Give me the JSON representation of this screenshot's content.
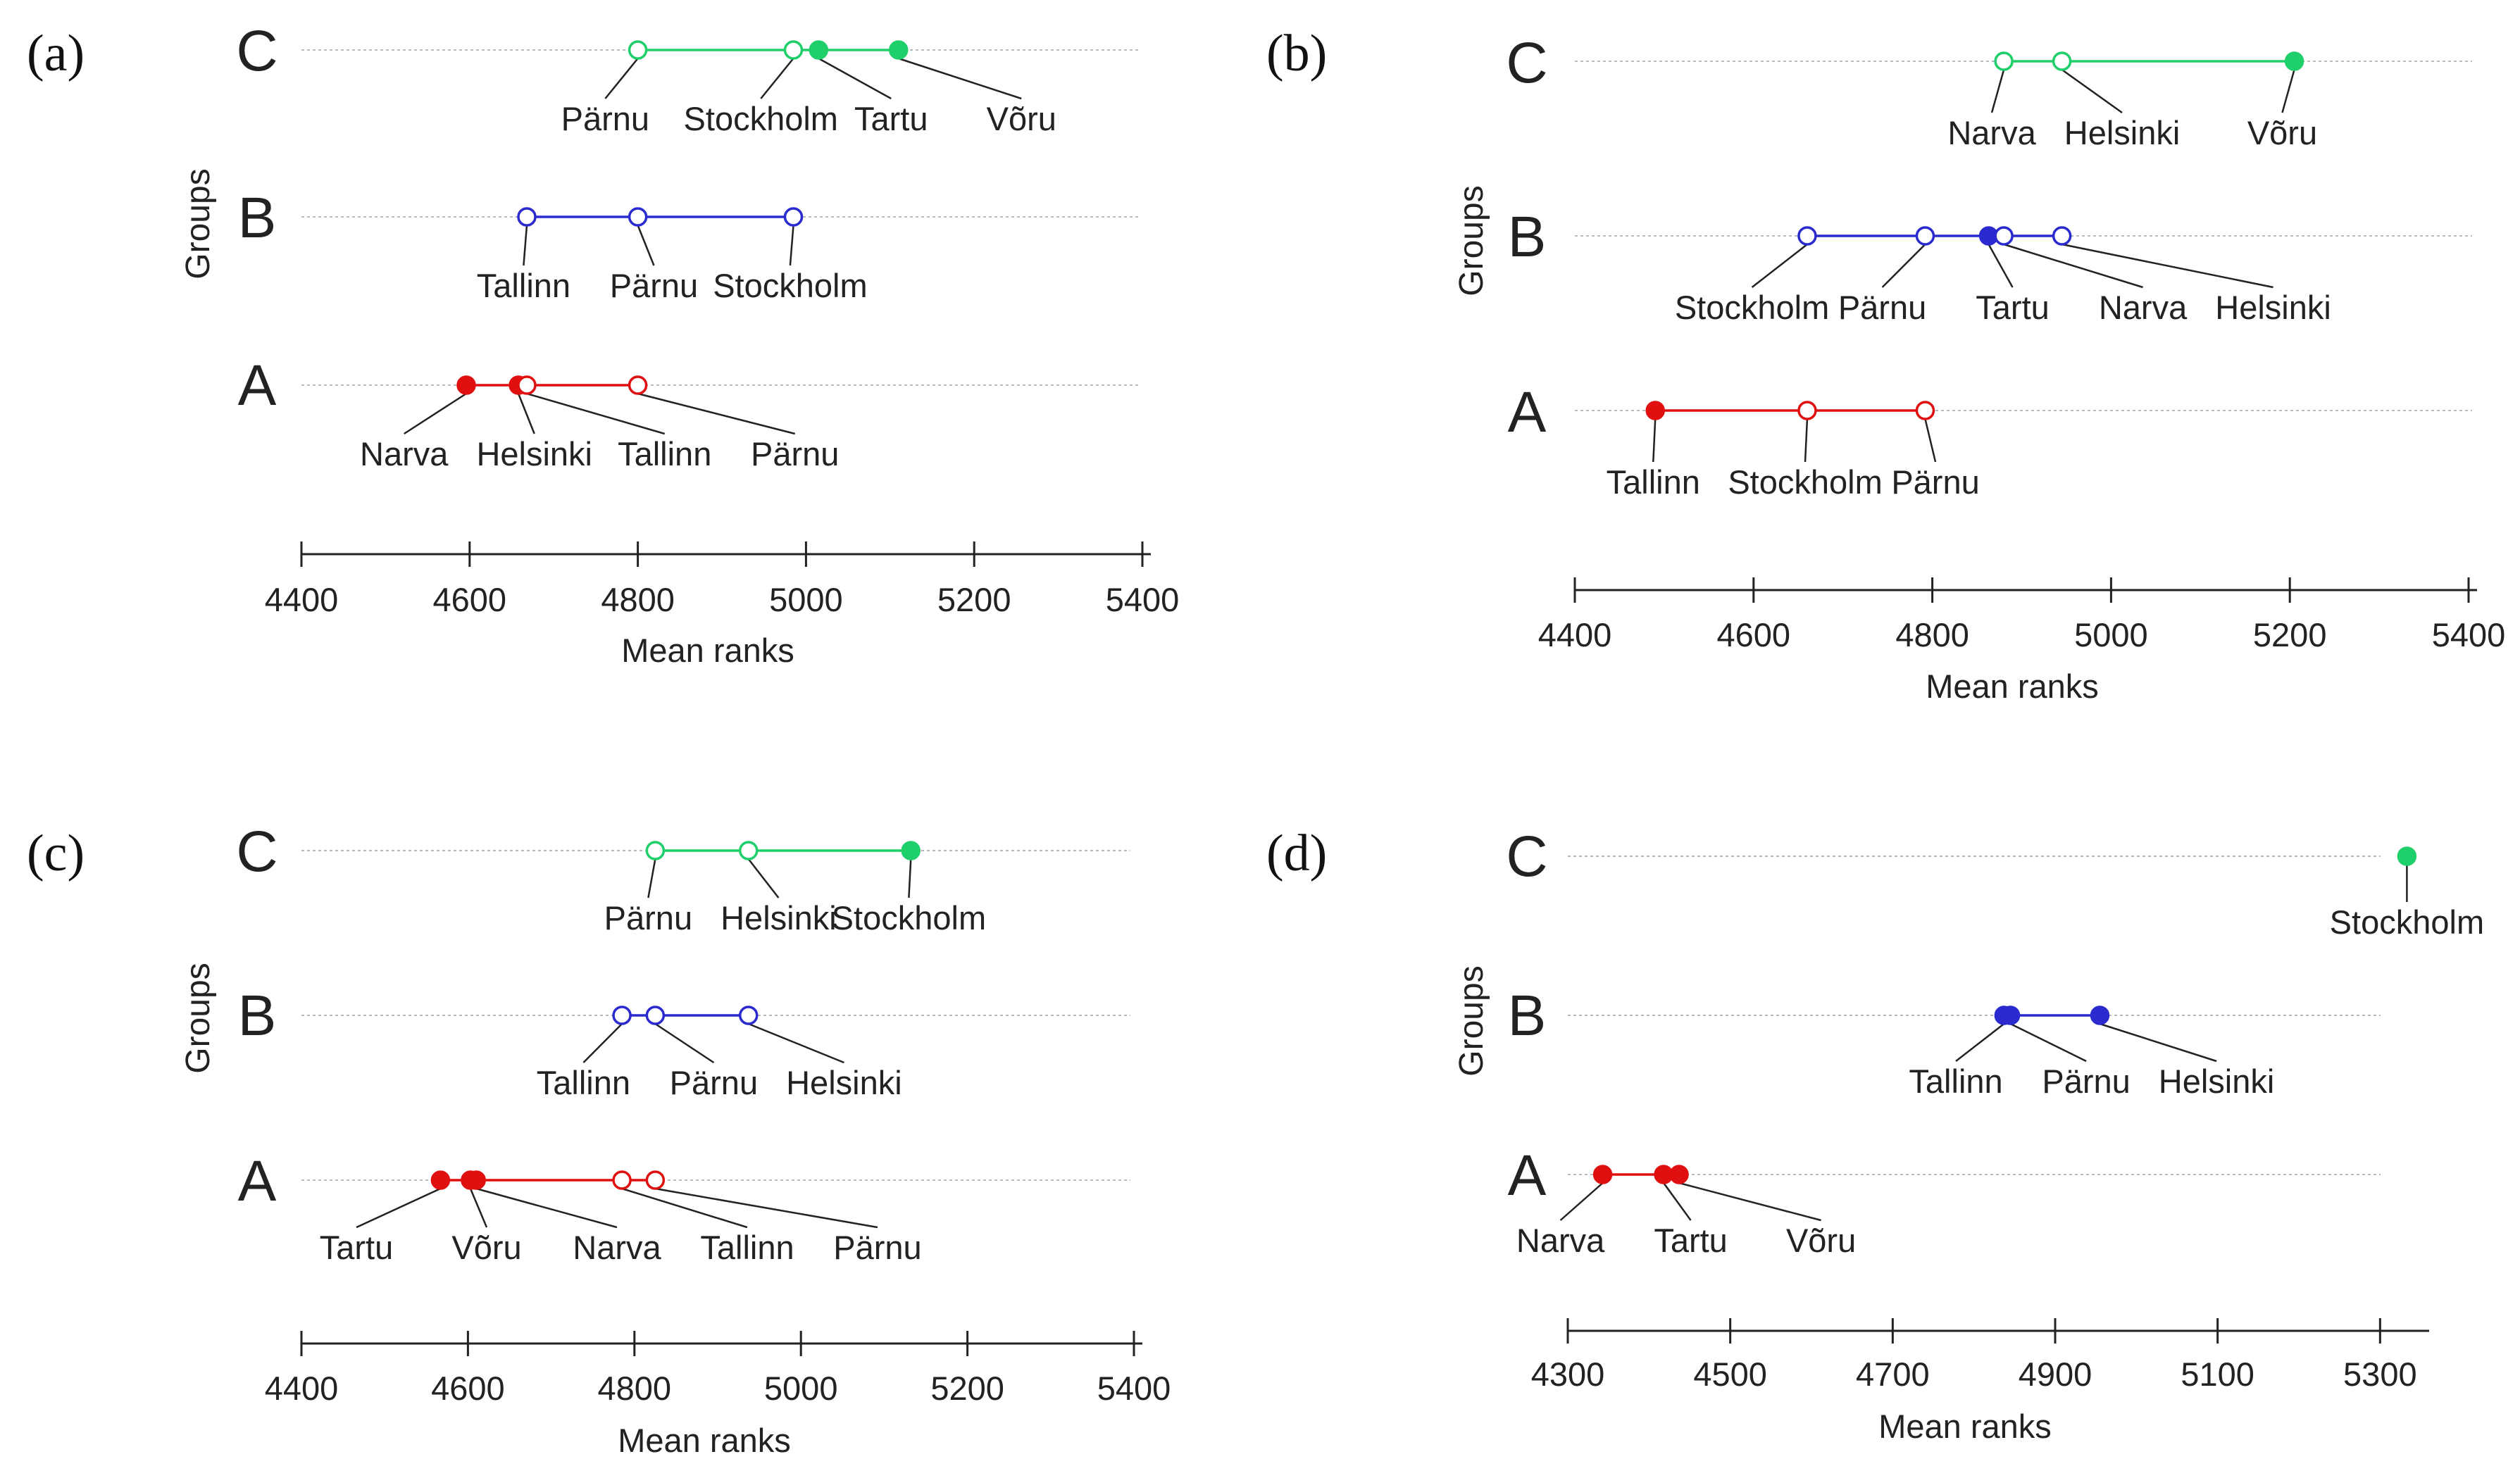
{
  "chart_data": [
    {
      "type": "scatter",
      "panel_label": "(a)",
      "ylabel": "Groups",
      "xlabel": "Mean ranks",
      "xlim": [
        4400,
        5400
      ],
      "xticks": [
        4400,
        4600,
        4800,
        5000,
        5200,
        5400
      ],
      "groups": [
        {
          "name": "C",
          "color": "#1fcf6a",
          "points": [
            {
              "label": "Pärnu",
              "value": 4800,
              "filled": false
            },
            {
              "label": "Stockholm",
              "value": 4985,
              "filled": false
            },
            {
              "label": "Tartu",
              "value": 5015,
              "filled": true
            },
            {
              "label": "Võru",
              "value": 5110,
              "filled": true
            }
          ]
        },
        {
          "name": "B",
          "color": "#2a2acf",
          "points": [
            {
              "label": "Tallinn",
              "value": 4668,
              "filled": false
            },
            {
              "label": "Pärnu",
              "value": 4800,
              "filled": false
            },
            {
              "label": "Stockholm",
              "value": 4985,
              "filled": false
            }
          ]
        },
        {
          "name": "A",
          "color": "#e01010",
          "points": [
            {
              "label": "Narva",
              "value": 4596,
              "filled": true
            },
            {
              "label": "Helsinki",
              "value": 4658,
              "filled": true
            },
            {
              "label": "Tallinn",
              "value": 4668,
              "filled": false
            },
            {
              "label": "Pärnu",
              "value": 4800,
              "filled": false
            }
          ]
        }
      ]
    },
    {
      "type": "scatter",
      "panel_label": "(b)",
      "ylabel": "Groups",
      "xlabel": "Mean ranks",
      "xlim": [
        4400,
        5400
      ],
      "xticks": [
        4400,
        4600,
        4800,
        5000,
        5200,
        5400
      ],
      "groups": [
        {
          "name": "C",
          "color": "#1fcf6a",
          "points": [
            {
              "label": "Narva",
              "value": 4880,
              "filled": false
            },
            {
              "label": "Helsinki",
              "value": 4945,
              "filled": false
            },
            {
              "label": "Võru",
              "value": 5205,
              "filled": true
            }
          ]
        },
        {
          "name": "B",
          "color": "#2a2acf",
          "points": [
            {
              "label": "Stockholm",
              "value": 4660,
              "filled": false
            },
            {
              "label": "Pärnu",
              "value": 4792,
              "filled": false
            },
            {
              "label": "Tartu",
              "value": 4863,
              "filled": true
            },
            {
              "label": "Narva",
              "value": 4880,
              "filled": false
            },
            {
              "label": "Helsinki",
              "value": 4945,
              "filled": false
            }
          ]
        },
        {
          "name": "A",
          "color": "#e01010",
          "points": [
            {
              "label": "Tallinn",
              "value": 4490,
              "filled": true
            },
            {
              "label": "Stockholm",
              "value": 4660,
              "filled": false
            },
            {
              "label": "Pärnu",
              "value": 4792,
              "filled": false
            }
          ]
        }
      ]
    },
    {
      "type": "scatter",
      "panel_label": "(c)",
      "ylabel": "Groups",
      "xlabel": "Mean ranks",
      "xlim": [
        4400,
        5400
      ],
      "xticks": [
        4400,
        4600,
        4800,
        5000,
        5200,
        5400
      ],
      "groups": [
        {
          "name": "C",
          "color": "#1fcf6a",
          "points": [
            {
              "label": "Pärnu",
              "value": 4825,
              "filled": false
            },
            {
              "label": "Helsinki",
              "value": 4937,
              "filled": false
            },
            {
              "label": "Stockholm",
              "value": 5132,
              "filled": true
            }
          ]
        },
        {
          "name": "B",
          "color": "#2a2acf",
          "points": [
            {
              "label": "Tallinn",
              "value": 4785,
              "filled": false
            },
            {
              "label": "Pärnu",
              "value": 4825,
              "filled": false
            },
            {
              "label": "Helsinki",
              "value": 4937,
              "filled": false
            }
          ]
        },
        {
          "name": "A",
          "color": "#e01010",
          "points": [
            {
              "label": "Tartu",
              "value": 4567,
              "filled": true
            },
            {
              "label": "Võru",
              "value": 4603,
              "filled": true
            },
            {
              "label": "Narva",
              "value": 4610,
              "filled": true
            },
            {
              "label": "Tallinn",
              "value": 4785,
              "filled": false
            },
            {
              "label": "Pärnu",
              "value": 4825,
              "filled": false
            }
          ]
        }
      ]
    },
    {
      "type": "scatter",
      "panel_label": "(d)",
      "ylabel": "Groups",
      "xlabel": "Mean ranks",
      "xlim": [
        4300,
        5350
      ],
      "xticks": [
        4300,
        4500,
        4700,
        4900,
        5100,
        5300
      ],
      "groups": [
        {
          "name": "C",
          "color": "#1fcf6a",
          "points": [
            {
              "label": "Stockholm",
              "value": 5333,
              "filled": true
            }
          ]
        },
        {
          "name": "B",
          "color": "#2a2acf",
          "points": [
            {
              "label": "Tallinn",
              "value": 4837,
              "filled": true
            },
            {
              "label": "Pärnu",
              "value": 4845,
              "filled": true
            },
            {
              "label": "Helsinki",
              "value": 4955,
              "filled": true
            }
          ]
        },
        {
          "name": "A",
          "color": "#e01010",
          "points": [
            {
              "label": "Narva",
              "value": 4343,
              "filled": true
            },
            {
              "label": "Tartu",
              "value": 4418,
              "filled": true
            },
            {
              "label": "Võru",
              "value": 4437,
              "filled": true
            }
          ]
        }
      ]
    }
  ]
}
